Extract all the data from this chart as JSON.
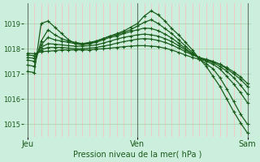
{
  "bg_color": "#cceedd",
  "line_color": "#1a5c1a",
  "grid_color_minor": "#ffbbbb",
  "grid_color_major": "#aaccaa",
  "title": "Pression niveau de la mer( hPa )",
  "xlabel_jeu": "Jeu",
  "xlabel_ven": "Ven",
  "xlabel_sam": "Sam",
  "ylim": [
    1014.5,
    1019.8
  ],
  "yticks": [
    1015,
    1016,
    1017,
    1018,
    1019
  ],
  "series": [
    {
      "x": [
        0,
        1,
        2,
        3,
        4,
        5,
        6,
        7,
        8,
        9,
        10,
        11,
        12,
        13,
        14,
        15,
        16,
        17,
        18,
        19,
        20,
        21,
        22,
        23,
        24,
        25,
        26,
        27,
        28,
        29,
        30,
        31,
        32
      ],
      "y": [
        1017.1,
        1017.05,
        1019.0,
        1019.1,
        1018.85,
        1018.6,
        1018.35,
        1018.2,
        1018.15,
        1018.2,
        1018.3,
        1018.4,
        1018.5,
        1018.6,
        1018.7,
        1018.85,
        1019.0,
        1019.3,
        1019.5,
        1019.35,
        1019.1,
        1018.8,
        1018.55,
        1018.25,
        1017.95,
        1017.6,
        1017.3,
        1016.9,
        1016.5,
        1016.0,
        1015.5,
        1015.05,
        1014.65
      ]
    },
    {
      "x": [
        0,
        1,
        2,
        3,
        4,
        5,
        6,
        7,
        8,
        9,
        10,
        11,
        12,
        13,
        14,
        15,
        16,
        17,
        18,
        19,
        20,
        21,
        22,
        23,
        24,
        25,
        26,
        27,
        28,
        29,
        30,
        31,
        32
      ],
      "y": [
        1017.35,
        1017.3,
        1018.3,
        1018.75,
        1018.55,
        1018.4,
        1018.3,
        1018.25,
        1018.2,
        1018.25,
        1018.3,
        1018.4,
        1018.5,
        1018.55,
        1018.65,
        1018.75,
        1018.9,
        1019.05,
        1019.15,
        1019.0,
        1018.8,
        1018.6,
        1018.35,
        1018.1,
        1017.85,
        1017.6,
        1017.4,
        1017.2,
        1016.85,
        1016.4,
        1015.9,
        1015.4,
        1015.0
      ]
    },
    {
      "x": [
        0,
        1,
        2,
        3,
        4,
        5,
        6,
        7,
        8,
        9,
        10,
        11,
        12,
        13,
        14,
        15,
        16,
        17,
        18,
        19,
        20,
        21,
        22,
        23,
        24,
        25,
        26,
        27,
        28,
        29,
        30,
        31,
        32
      ],
      "y": [
        1017.55,
        1017.5,
        1018.15,
        1018.45,
        1018.35,
        1018.3,
        1018.25,
        1018.2,
        1018.2,
        1018.2,
        1018.25,
        1018.35,
        1018.45,
        1018.5,
        1018.6,
        1018.68,
        1018.75,
        1018.82,
        1018.8,
        1018.72,
        1018.58,
        1018.42,
        1018.22,
        1018.0,
        1017.8,
        1017.65,
        1017.5,
        1017.38,
        1017.2,
        1016.9,
        1016.6,
        1016.25,
        1015.85
      ]
    },
    {
      "x": [
        0,
        1,
        2,
        3,
        4,
        5,
        6,
        7,
        8,
        9,
        10,
        11,
        12,
        13,
        14,
        15,
        16,
        17,
        18,
        19,
        20,
        21,
        22,
        23,
        24,
        25,
        26,
        27,
        28,
        29,
        30,
        31,
        32
      ],
      "y": [
        1017.65,
        1017.62,
        1018.05,
        1018.2,
        1018.18,
        1018.15,
        1018.12,
        1018.1,
        1018.1,
        1018.12,
        1018.15,
        1018.22,
        1018.3,
        1018.38,
        1018.45,
        1018.5,
        1018.55,
        1018.58,
        1018.55,
        1018.5,
        1018.4,
        1018.28,
        1018.12,
        1017.95,
        1017.78,
        1017.65,
        1017.55,
        1017.45,
        1017.3,
        1017.1,
        1016.85,
        1016.55,
        1016.2
      ]
    },
    {
      "x": [
        0,
        1,
        2,
        3,
        4,
        5,
        6,
        7,
        8,
        9,
        10,
        11,
        12,
        13,
        14,
        15,
        16,
        17,
        18,
        19,
        20,
        21,
        22,
        23,
        24,
        25,
        26,
        27,
        28,
        29,
        30,
        31,
        32
      ],
      "y": [
        1017.75,
        1017.72,
        1017.95,
        1018.05,
        1018.05,
        1018.05,
        1018.02,
        1018.0,
        1018.0,
        1018.02,
        1018.05,
        1018.1,
        1018.15,
        1018.22,
        1018.28,
        1018.33,
        1018.38,
        1018.4,
        1018.38,
        1018.33,
        1018.25,
        1018.15,
        1018.02,
        1017.88,
        1017.75,
        1017.65,
        1017.58,
        1017.5,
        1017.38,
        1017.2,
        1017.0,
        1016.78,
        1016.5
      ]
    },
    {
      "x": [
        0,
        1,
        2,
        3,
        4,
        5,
        6,
        7,
        8,
        9,
        10,
        11,
        12,
        13,
        14,
        15,
        16,
        17,
        18,
        19,
        20,
        21,
        22,
        23,
        24,
        25,
        26,
        27,
        28,
        29,
        30,
        31,
        32
      ],
      "y": [
        1017.82,
        1017.8,
        1017.88,
        1017.9,
        1017.92,
        1017.95,
        1017.95,
        1017.95,
        1017.95,
        1017.95,
        1017.98,
        1018.0,
        1018.02,
        1018.05,
        1018.08,
        1018.1,
        1018.12,
        1018.12,
        1018.1,
        1018.08,
        1018.02,
        1017.95,
        1017.85,
        1017.75,
        1017.65,
        1017.58,
        1017.52,
        1017.48,
        1017.38,
        1017.25,
        1017.08,
        1016.88,
        1016.62
      ]
    }
  ],
  "jeu_x": 0,
  "ven_x": 16,
  "sam_x": 32,
  "n_points": 33,
  "xlim_left": -0.5,
  "xlim_right": 32.5
}
